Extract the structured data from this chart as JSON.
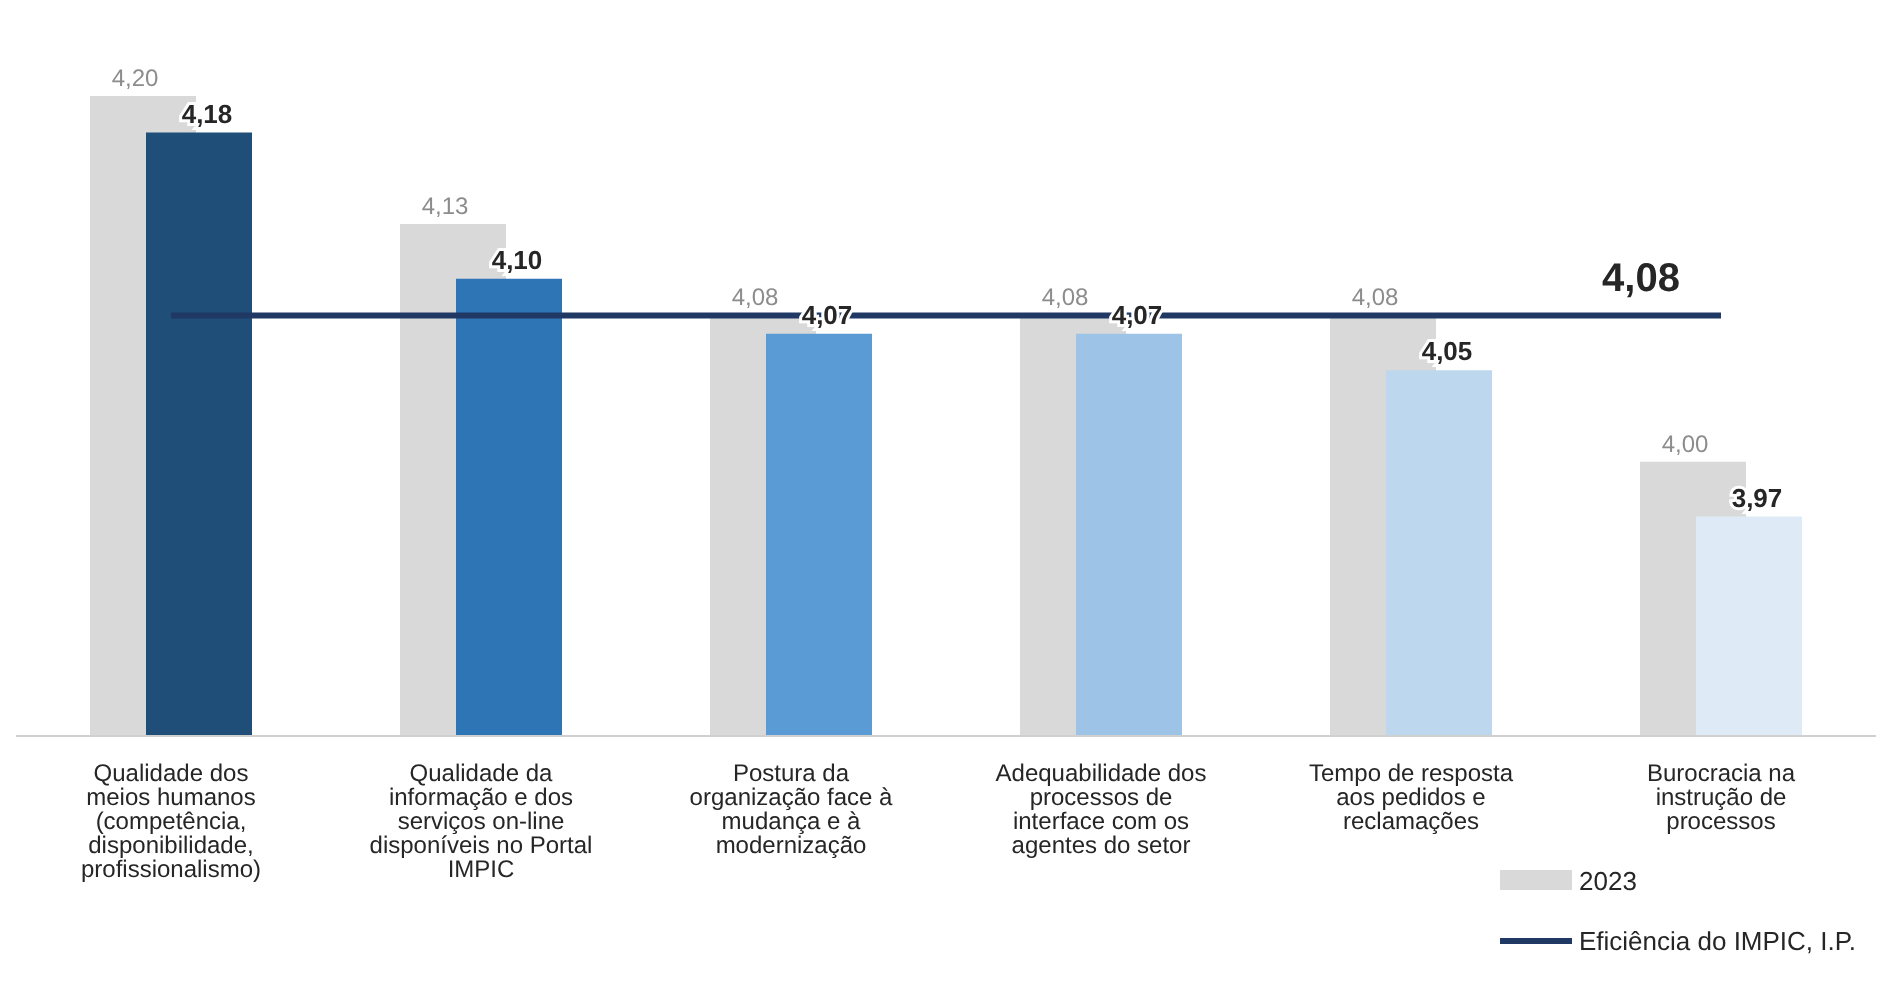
{
  "chart_data": {
    "type": "bar",
    "categories": [
      "Qualidade dos meios humanos (competência, disponibilidade, profissionalismo)",
      "Qualidade da informação e dos serviços on-line disponíveis no Portal IMPIC",
      "Postura da organização face à mudança e à modernização",
      "Adequabilidade dos processos de interface com os agentes do setor",
      "Tempo de resposta aos pedidos e reclamações",
      "Burocracia na instrução de processos"
    ],
    "series": [
      {
        "name": "2023",
        "color": "#d9d9d9",
        "values": [
          4.2,
          4.13,
          4.08,
          4.08,
          4.08,
          4.0
        ],
        "value_labels": [
          "4,20",
          "4,13",
          "4,08",
          "4,08",
          "4,08",
          "4,00"
        ]
      },
      {
        "colors": [
          "#1f4e79",
          "#2e75b6",
          "#5b9bd5",
          "#9dc3e6",
          "#bdd7ee",
          "#deebf7"
        ],
        "values": [
          4.18,
          4.1,
          4.07,
          4.07,
          4.05,
          3.97
        ],
        "value_labels": [
          "4,18",
          "4,10",
          "4,07",
          "4,07",
          "4,05",
          "3,97"
        ]
      },
      {
        "name": "Eficiência do IMPIC, I.P.",
        "type": "line",
        "color": "#1f3864",
        "values": [
          4.08,
          4.08,
          4.08,
          4.08,
          4.08,
          4.08
        ],
        "value_labels": [
          null,
          null,
          null,
          null,
          null,
          "4,08"
        ]
      }
    ],
    "ylim": [
      3.85,
      4.2
    ],
    "tick_labels": "x",
    "legend": "bottom right"
  }
}
